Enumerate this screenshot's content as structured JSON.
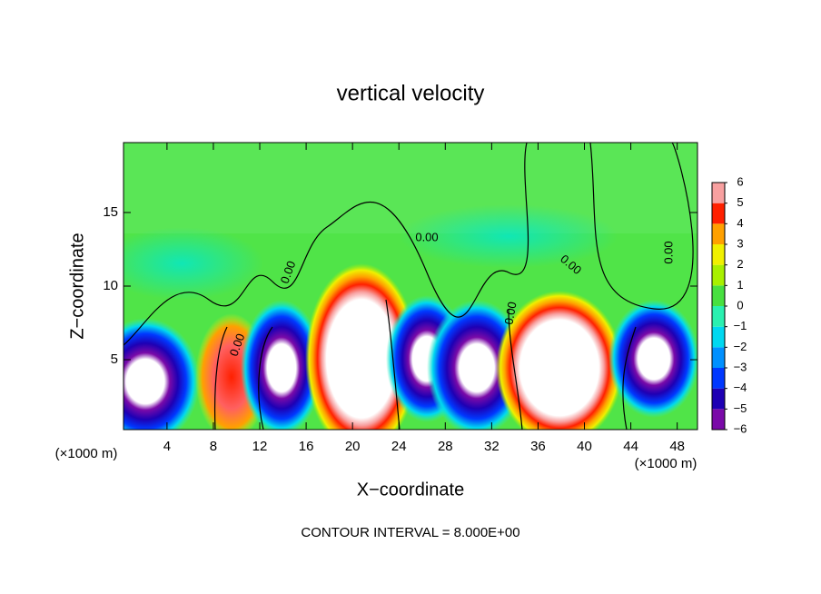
{
  "chart_data": {
    "type": "contour",
    "title": "vertical velocity",
    "x_label": "X−coordinate",
    "y_label": "Z−coordinate",
    "x_unit_left": "(×1000 m)",
    "x_unit_right": "(×1000 m)",
    "footer": "CONTOUR INTERVAL = 8.000E+00",
    "xlim": [
      0.25,
      49.75
    ],
    "ylim": [
      0.25,
      19.75
    ],
    "xticks": [
      4,
      8,
      12,
      16,
      20,
      24,
      28,
      32,
      36,
      40,
      44,
      48
    ],
    "yticks": [
      5,
      10,
      15
    ],
    "contour_labels": [
      "0.00",
      "0.00",
      "0.00",
      "0.00",
      "0.00",
      "0.00"
    ],
    "colorbar": {
      "ticks": [
        {
          "value": -6,
          "label": "−6"
        },
        {
          "value": -5,
          "label": "−5"
        },
        {
          "value": -4,
          "label": "−4"
        },
        {
          "value": -3,
          "label": "−3"
        },
        {
          "value": -2,
          "label": "−2"
        },
        {
          "value": -1,
          "label": "−1"
        },
        0,
        1,
        2,
        3,
        4,
        5,
        6
      ],
      "colors": [
        "#7a0aa8",
        "#1e00b4",
        "#0038ff",
        "#0090ff",
        "#00d8f0",
        "#2af0b0",
        "#48e040",
        "#a8f000",
        "#f0f000",
        "#ffa000",
        "#ff2000",
        "#f8a0a0"
      ]
    }
  }
}
